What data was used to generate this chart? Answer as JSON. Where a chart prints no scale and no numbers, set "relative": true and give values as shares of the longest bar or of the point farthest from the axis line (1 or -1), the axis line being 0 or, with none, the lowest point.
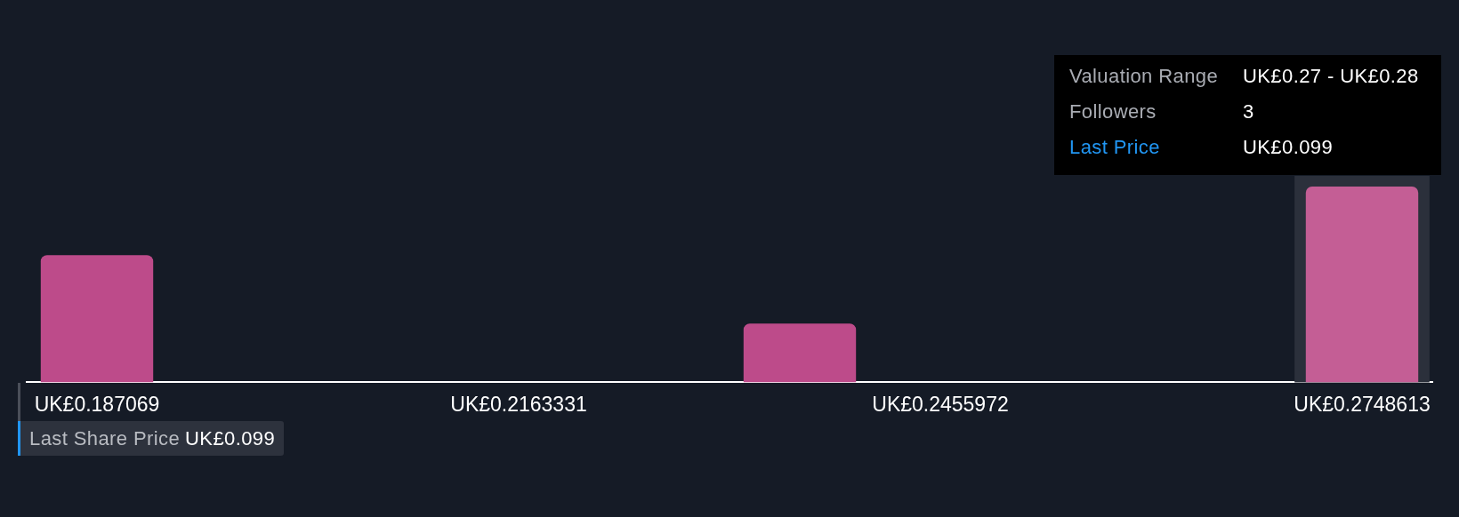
{
  "chart_data": {
    "type": "bar",
    "relative": true,
    "categories": [
      "UK£0.187069",
      null,
      null,
      "UK£0.2163331",
      null,
      null,
      "UK£0.2455972",
      null,
      null,
      "UK£0.2748613"
    ],
    "values": [
      0.65,
      0,
      0,
      0,
      0,
      0.3,
      0,
      0,
      0,
      1
    ],
    "colors": [
      "#bd4b8a",
      "#bd4b8a",
      "#bd4b8a",
      "#bd4b8a",
      "#bd4b8a",
      "#bd4b8a",
      "#bd4b8a",
      "#bd4b8a",
      "#bd4b8a",
      "#c45e95"
    ],
    "bands": [
      {
        "axis": "x",
        "from": "UK£0.2748613",
        "to": "UK£0.2748613",
        "color": "#2b303b"
      }
    ],
    "annotations": [
      "Valuation Range",
      "UK£0.27 - UK£0.28",
      "Followers",
      "3",
      "Last Price",
      "UK£0.099",
      "Last Share Price",
      "UK£0.099"
    ]
  }
}
